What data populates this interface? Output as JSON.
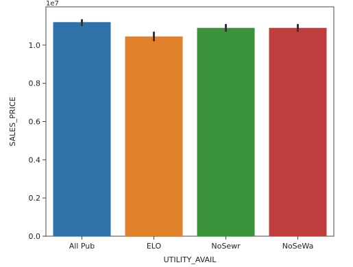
{
  "chart_data": {
    "type": "bar",
    "title": "",
    "xlabel": "UTILITY_AVAIL",
    "ylabel": "SALES_PRICE",
    "offset_text": "1e7",
    "categories": [
      "All Pub",
      "ELO",
      "NoSewr",
      "NoSeWa"
    ],
    "values": [
      1.12,
      1.045,
      1.09,
      1.09
    ],
    "error_low": [
      1.1,
      1.02,
      1.07,
      1.07
    ],
    "error_high": [
      1.135,
      1.07,
      1.11,
      1.11
    ],
    "colors": [
      "#2f72aa",
      "#e1812c",
      "#3a923a",
      "#c03d3e"
    ],
    "ylim": [
      0,
      1.2
    ],
    "yticks": [
      0.0,
      0.2,
      0.4,
      0.6,
      0.8,
      1.0
    ],
    "ytick_labels": [
      "0.0",
      "0.2",
      "0.4",
      "0.6",
      "0.8",
      "1.0"
    ],
    "grid": false,
    "legend": "none"
  }
}
